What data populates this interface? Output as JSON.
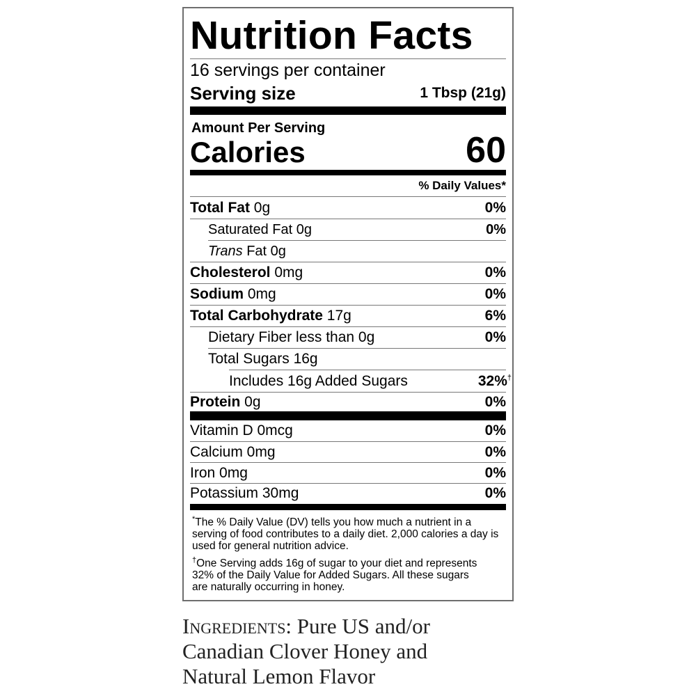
{
  "title": "Nutrition Facts",
  "servings_per_container": "16 servings per container",
  "serving_size_label": "Serving size",
  "serving_size_value": "1 Tbsp (21g)",
  "amount_per_serving": "Amount Per Serving",
  "calories_label": "Calories",
  "calories_value": "60",
  "dv_header": "% Daily Values*",
  "nutrients": [
    {
      "name": "Total Fat",
      "amount": " 0g",
      "dv": "0%"
    },
    {
      "name": "Saturated Fat 0g",
      "dv": "0%"
    },
    {
      "name_italic": "Trans",
      "name_rest": " Fat 0g"
    },
    {
      "name": "Cholesterol",
      "amount": " 0mg",
      "dv": "0%"
    },
    {
      "name": "Sodium",
      "amount": " 0mg",
      "dv": "0%"
    },
    {
      "name": "Total Carbohydrate",
      "amount": " 17g",
      "dv": "6%"
    },
    {
      "name": "Dietary Fiber less than 0g",
      "dv": "0%"
    },
    {
      "name": "Total Sugars 16g"
    },
    {
      "name": "Includes 16g Added Sugars",
      "dv": "32%",
      "dv_mark": "†"
    },
    {
      "name": "Protein",
      "amount": " 0g",
      "dv": "0%"
    }
  ],
  "vitamins": [
    {
      "name": "Vitamin D 0mcg",
      "dv": "0%"
    },
    {
      "name": "Calcium 0mg",
      "dv": "0%"
    },
    {
      "name": "Iron 0mg",
      "dv": "0%"
    },
    {
      "name": "Potassium 30mg",
      "dv": "0%"
    }
  ],
  "footnote_dv_mark": "*",
  "footnote_dv": "The % Daily Value (DV) tells you how much a nutrient in a serving of food contributes to a daily diet. 2,000 calories a day is used for general nutrition advice.",
  "footnote_sugar_mark": "†",
  "footnote_sugar": "One Serving adds 16g of sugar to your diet and represents 32% of the Daily Value for Added Sugars. All these sugars are naturally occurring in honey.",
  "ingredients_label": "Ingredients:",
  "ingredients_text": " Pure US and/or Canadian Clover Honey and Natural Lemon Flavor"
}
